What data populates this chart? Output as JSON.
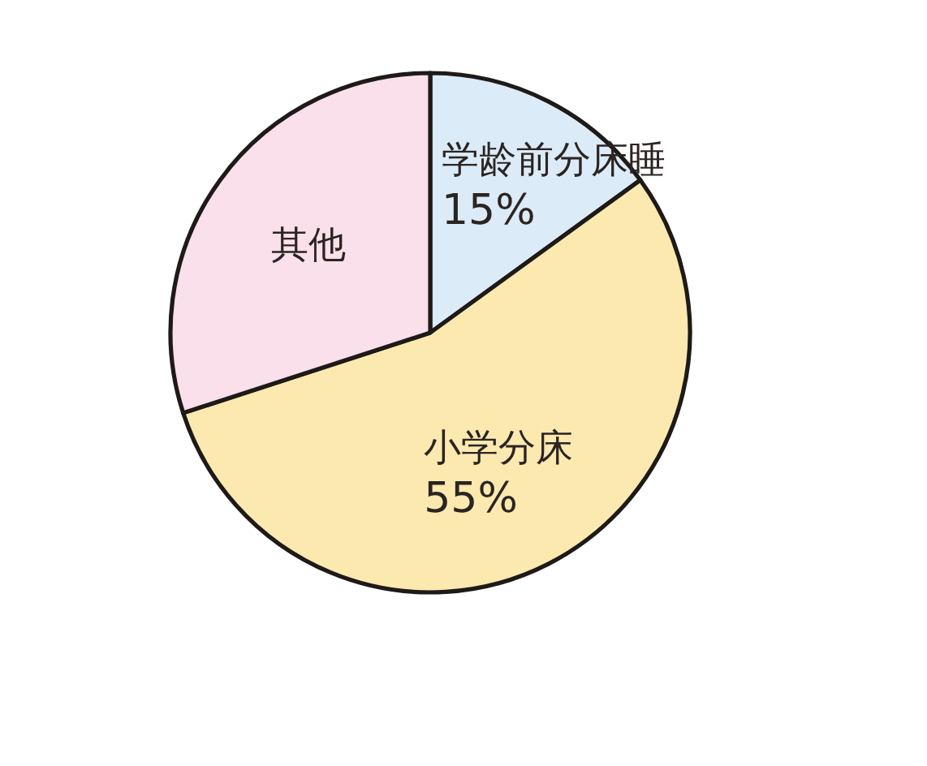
{
  "chart_data": {
    "type": "pie",
    "categories": [
      "学龄前分床睡",
      "小学分床",
      "其他"
    ],
    "values": [
      15,
      55,
      30
    ],
    "colors": [
      "#dcebf8",
      "#fce9b0",
      "#f9e0ea"
    ],
    "value_labels": [
      "15%",
      "55%",
      null
    ]
  }
}
